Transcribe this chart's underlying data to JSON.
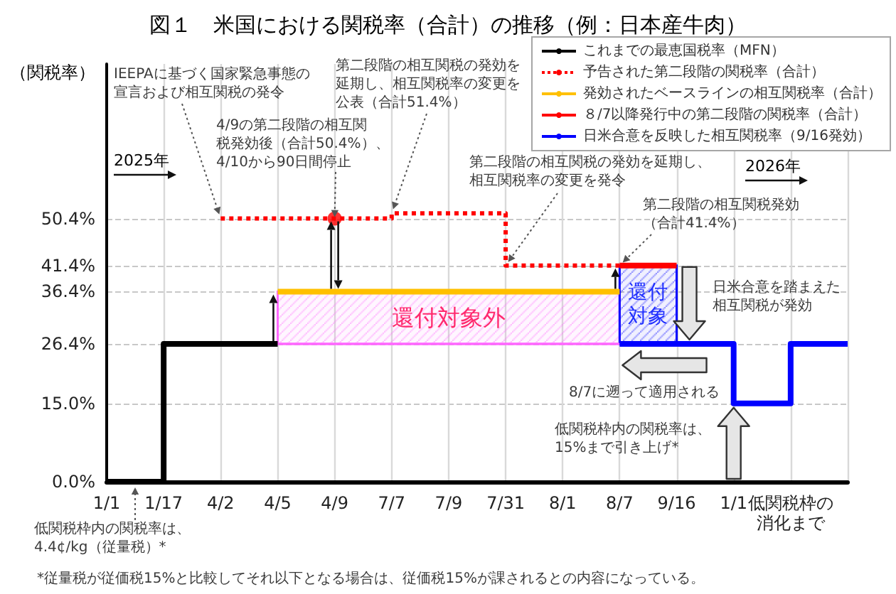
{
  "chart_data": {
    "type": "step",
    "title": "図１　米国における関税率（合計）の推移（例：日本産牛肉）",
    "ylabel": "（関税率）",
    "categories": [
      "1/1",
      "1/17",
      "4/2",
      "4/5",
      "4/9",
      "7/7",
      "7/9",
      "7/31",
      "8/1",
      "8/7",
      "9/16",
      "1/1",
      "低関税枠の消化まで",
      null
    ],
    "series": [
      {
        "color": "#ff66ff",
        "values": [
          null,
          null,
          null,
          26.4,
          26.4,
          26.4,
          26.4,
          26.4,
          26.4,
          26.4,
          null,
          null,
          null,
          null
        ],
        "lower": [
          null,
          null,
          null,
          26.4,
          26.4,
          26.4,
          26.4,
          26.4,
          26.4,
          26.4,
          null,
          null,
          null,
          null
        ],
        "upper": [
          null,
          null,
          null,
          36.4,
          36.4,
          36.4,
          36.4,
          36.4,
          36.4,
          36.4,
          null,
          null,
          null,
          null
        ]
      },
      {
        "name": "これまでの最恵国税率（MFN）",
        "color": "#000000",
        "values": [
          0,
          26.4,
          26.4,
          26.4,
          null,
          null,
          null,
          null,
          null,
          null,
          null,
          null,
          null,
          null
        ]
      },
      {
        "name": "予告された第二段階の関税率（合計）",
        "color": "#ff0000",
        "line_style": "dotted",
        "values": [
          null,
          null,
          50.4,
          50.4,
          50.4,
          51.4,
          51.4,
          41.4,
          41.4,
          41.4,
          null,
          null,
          null,
          null
        ]
      },
      {
        "name": "発効されたベースラインの相互関税率（合計）",
        "color": "#ffc000",
        "values": [
          null,
          null,
          null,
          36.4,
          36.4,
          36.4,
          36.4,
          36.4,
          36.4,
          36.4,
          null,
          null,
          null,
          null
        ]
      },
      {
        "name": "８/7以降発行中の第二段階の関税率（合計）",
        "color": "#ff0000",
        "values": [
          null,
          null,
          null,
          null,
          null,
          null,
          null,
          null,
          null,
          41.4,
          41.4,
          null,
          null,
          null
        ]
      },
      {
        "name": "日米合意を反映した相互関税率（9/16発効）",
        "color": "#0000ff",
        "values": [
          null,
          null,
          null,
          null,
          null,
          null,
          null,
          null,
          null,
          26.4,
          26.4,
          15,
          26.4,
          26.4
        ],
        "lower": [
          null,
          null,
          null,
          null,
          null,
          null,
          null,
          null,
          null,
          26.4,
          26.4,
          null,
          null,
          null
        ],
        "upper": [
          null,
          null,
          null,
          null,
          null,
          null,
          null,
          null,
          null,
          41.4,
          41.4,
          null,
          null,
          null
        ]
      },
      {
        "type": "scatter",
        "color": "#ff0000",
        "marker": "circle",
        "x": [
          "4/9"
        ],
        "values": [
          50.4
        ]
      }
    ],
    "ylim": [
      0,
      80
    ],
    "yticks": [
      {
        "value": 0,
        "label": "0.0%"
      },
      {
        "value": 15,
        "label": "15.0%"
      },
      {
        "value": 26.4,
        "label": "26.4%"
      },
      {
        "value": 36.4,
        "label": "36.4%"
      },
      {
        "value": 41.4,
        "label": "41.4%"
      },
      {
        "value": 50.4,
        "label": "50.4%"
      }
    ],
    "grid": true,
    "legend": "top right",
    "marker": "none",
    "line_style": "solid",
    "annotations": [
      {
        "text": "IEEPAに基づく国家緊急事態の宣言および相互関税の発令",
        "x": "4/2",
        "y": 50.4
      },
      {
        "text": "4/9の第二段階の相互関税発効後（合計50.4%）、4/10から90日間停止",
        "x": "4/9",
        "y": 50.4
      },
      {
        "text": "第二段階の相互関税の発効を延期し、相互関税率の変更を公表（合計51.4%）",
        "x": "7/7",
        "y": 51.4
      },
      {
        "text": "第二段階の相互関税の発効を延期し、相互関税率の変更を発令",
        "x": "7/31",
        "y": 41.4
      },
      {
        "text": "第二段階の相互関税発効（合計41.4%）",
        "x": "8/7",
        "y": 41.4
      },
      "日米合意を踏まえた相互関税が発効",
      {
        "text": "8/7に遡って適用される",
        "x": "8/7",
        "y": 26.4
      },
      "低関税枠内の関税率は、15%まで引き上げ*",
      "低関税枠内の関税率は、4.4¢/kg（従量税）*",
      "還付対象外",
      "還付対象",
      "2025年",
      "2026年",
      "*従量税が従価税15%と比較してそれ以下となる場合は、従価税15%が課されるとの内容になっている。"
    ]
  }
}
